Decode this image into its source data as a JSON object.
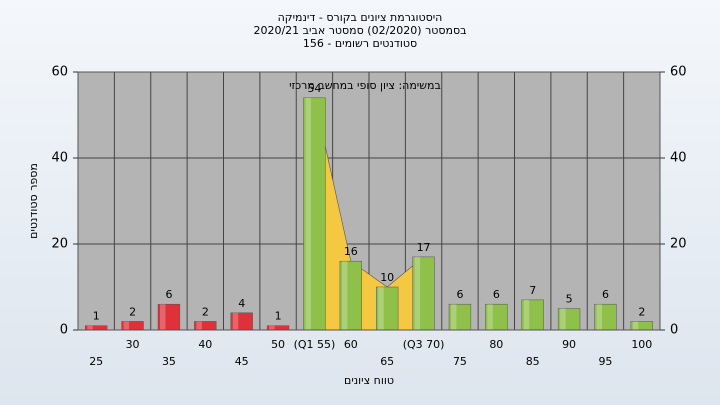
{
  "chart_data": {
    "type": "bar",
    "title": [
      "היסטוגרמת ציונים בקורס - דינמיקה",
      "בסמסטר (02/2020) סמסטר אביב 2020/21",
      "סטודנטים רשומים - 156"
    ],
    "annotation": "במשימה: ציון סופי במחשב מרכזי",
    "x_label": "טווח ציונים",
    "y_label": "מספר סטודנטים",
    "categories": [
      "25",
      "30",
      "35",
      "40",
      "45",
      "50",
      "(Q1 55)",
      "60",
      "65",
      "(Q3 70)",
      "75",
      "80",
      "85",
      "90",
      "95",
      "100"
    ],
    "values": [
      1,
      2,
      6,
      2,
      4,
      1,
      54,
      16,
      10,
      17,
      6,
      6,
      7,
      5,
      6,
      2
    ],
    "colors": [
      "#e0303a",
      "#e0303a",
      "#e0303a",
      "#e0303a",
      "#e0303a",
      "#e0303a",
      "#8fc04a",
      "#8fc04a",
      "#8fc04a",
      "#8fc04a",
      "#8fc04a",
      "#8fc04a",
      "#8fc04a",
      "#8fc04a",
      "#8fc04a",
      "#8fc04a"
    ],
    "ylim": [
      0,
      60
    ],
    "yticks": [
      0,
      20,
      40,
      60
    ],
    "grid": true
  }
}
